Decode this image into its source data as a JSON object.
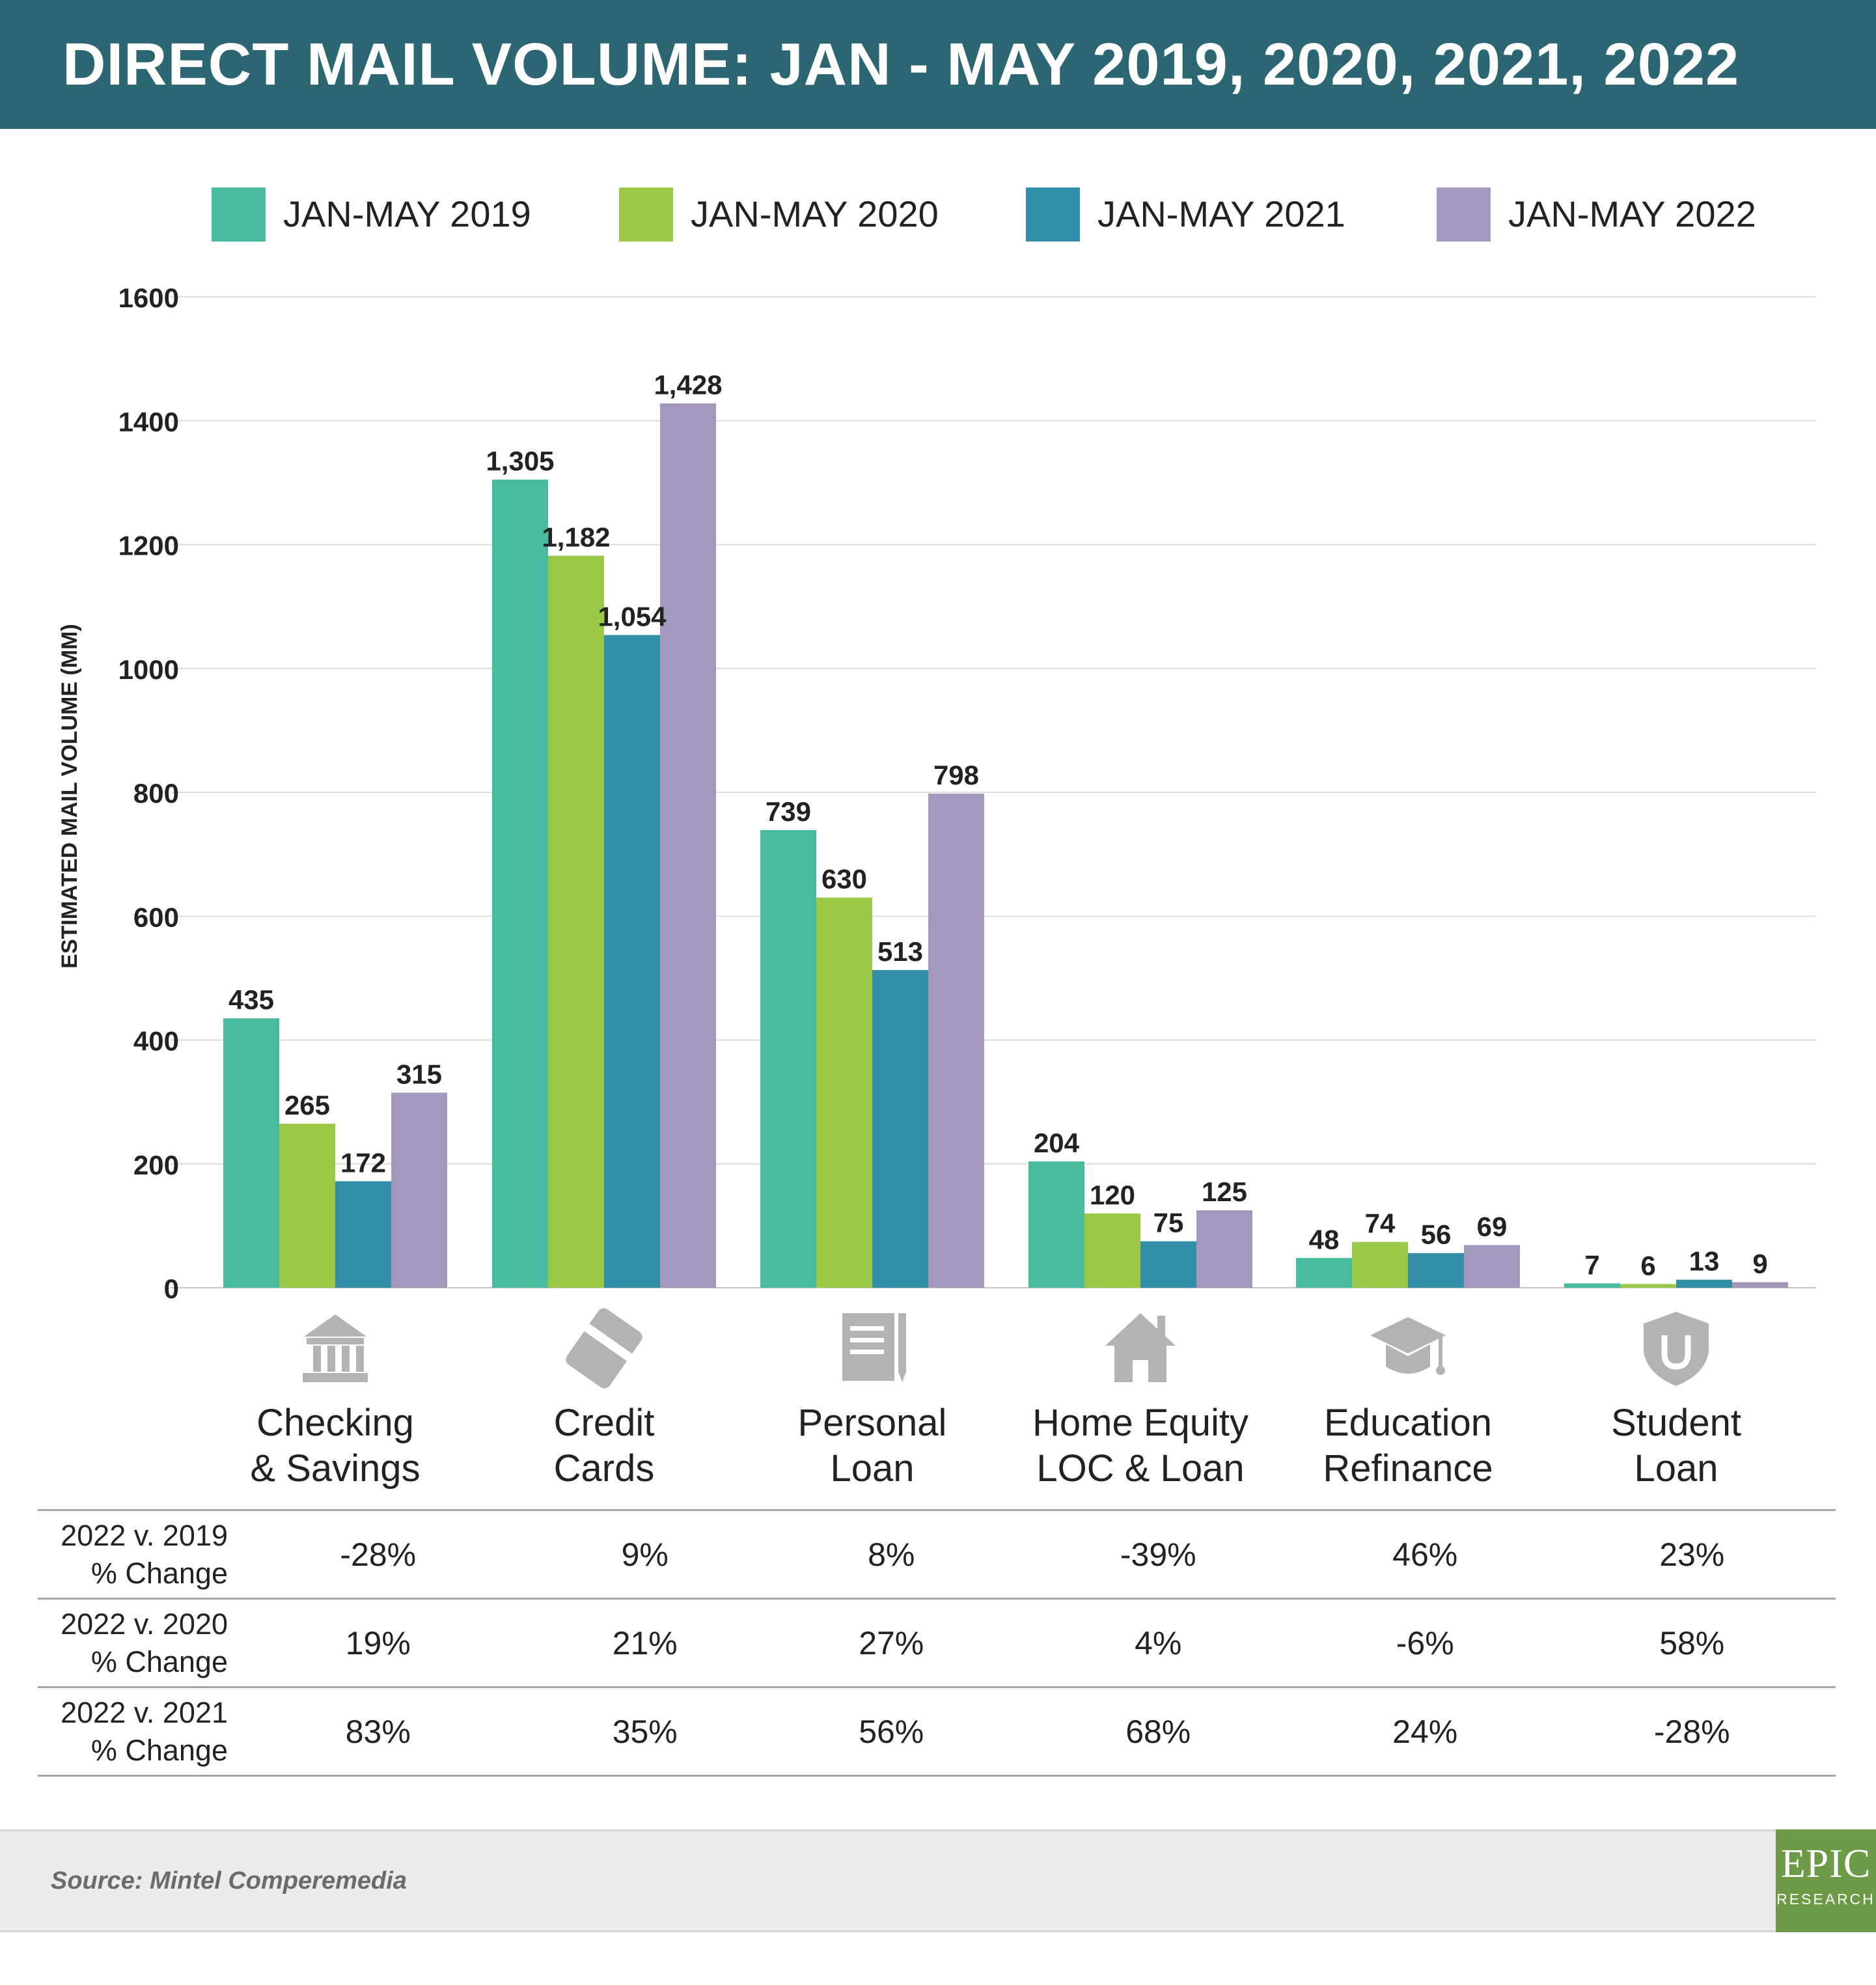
{
  "title": "DIRECT MAIL VOLUME: JAN - MAY 2019, 2020, 2021, 2022",
  "chart_data": {
    "type": "bar",
    "title": "DIRECT MAIL VOLUME: JAN - MAY 2019, 2020, 2021, 2022",
    "ylabel": "ESTIMATED MAIL VOLUME (MM)",
    "xlabel": "",
    "ylim": [
      0,
      1600
    ],
    "yticks": [
      0,
      200,
      400,
      600,
      800,
      1000,
      1200,
      1400,
      1600
    ],
    "grid": true,
    "legend_position": "top",
    "categories": [
      "Checking & Savings",
      "Credit Cards",
      "Personal Loan",
      "Home Equity LOC & Loan",
      "Education Refinance",
      "Student Loan"
    ],
    "category_lines": [
      [
        "Checking",
        "& Savings"
      ],
      [
        "Credit",
        "Cards"
      ],
      [
        "Personal",
        "Loan"
      ],
      [
        "Home Equity",
        "LOC & Loan"
      ],
      [
        "Education",
        "Refinance"
      ],
      [
        "Student",
        "Loan"
      ]
    ],
    "category_icons": [
      "bank-icon",
      "credit-card-icon",
      "document-icon",
      "house-icon",
      "graduation-cap-icon",
      "shield-icon"
    ],
    "series": [
      {
        "name": "JAN-MAY 2019",
        "color": "#47bb9f",
        "values": [
          435,
          1305,
          739,
          204,
          48,
          7
        ],
        "labels": [
          "435",
          "1,305",
          "739",
          "204",
          "48",
          "7"
        ]
      },
      {
        "name": "JAN-MAY 2020",
        "color": "#9bc847",
        "values": [
          265,
          1182,
          630,
          120,
          74,
          6
        ],
        "labels": [
          "265",
          "1,182",
          "630",
          "120",
          "74",
          "6"
        ]
      },
      {
        "name": "JAN-MAY 2021",
        "color": "#338ea7",
        "values": [
          172,
          1054,
          513,
          75,
          56,
          13
        ],
        "labels": [
          "172",
          "1,054",
          "513",
          "75",
          "56",
          "13"
        ]
      },
      {
        "name": "JAN-MAY 2022",
        "color": "#a398bb",
        "values": [
          315,
          1428,
          798,
          125,
          69,
          9
        ],
        "labels": [
          "315",
          "1,428",
          "798",
          "125",
          "69",
          "9"
        ]
      }
    ]
  },
  "change_table": {
    "rows": [
      {
        "label_line1": "2022 v. 2019",
        "label_line2": "% Change",
        "values": [
          "-28%",
          "9%",
          "8%",
          "-39%",
          "46%",
          "23%"
        ]
      },
      {
        "label_line1": "2022 v. 2020",
        "label_line2": "% Change",
        "values": [
          "19%",
          "21%",
          "27%",
          "4%",
          "-6%",
          "58%"
        ]
      },
      {
        "label_line1": "2022 v. 2021",
        "label_line2": "% Change",
        "values": [
          "83%",
          "35%",
          "56%",
          "68%",
          "24%",
          "-28%"
        ]
      }
    ]
  },
  "footer": {
    "source": "Source: Mintel Comperemedia",
    "logo_main": "EPIC",
    "logo_sub": "RESEARCH"
  },
  "colors": {
    "title_bar": "#2c6672",
    "icon": "#b3b3b3",
    "grid": "#dddddd",
    "logo": "#6c9a45"
  }
}
